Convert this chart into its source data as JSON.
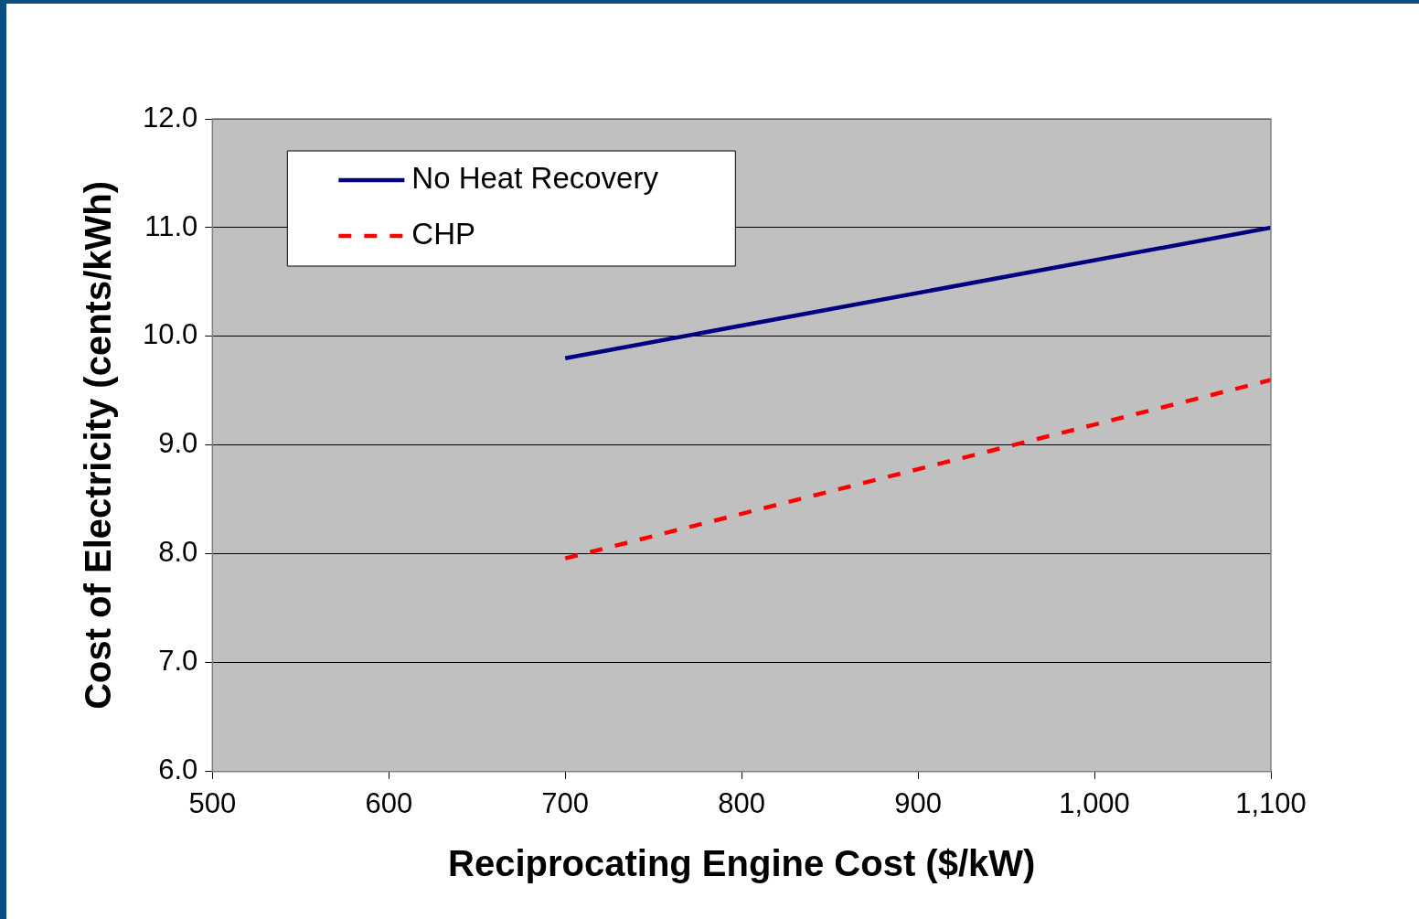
{
  "chart_data": {
    "type": "line",
    "xlabel": "Reciprocating Engine Cost ($/kW)",
    "ylabel": "Cost of Electricity (cents/kWh)",
    "x": [
      700,
      1100
    ],
    "series": [
      {
        "name": "No Heat Recovery",
        "color": "#000080",
        "values": [
          9.8,
          11.0
        ],
        "line_style": "solid"
      },
      {
        "name": "CHP",
        "color": "#ff0000",
        "values": [
          7.96,
          9.6
        ],
        "line_style": "dashed"
      }
    ],
    "xlim": [
      500,
      1100
    ],
    "ylim": [
      6,
      12
    ],
    "xticks": [
      500,
      600,
      700,
      800,
      900,
      {
        "value": 1000,
        "label": "1,000"
      },
      {
        "value": 1100,
        "label": "1,100"
      }
    ],
    "yticks": [
      {
        "value": 6,
        "label": "6.0"
      },
      {
        "value": 7,
        "label": "7.0"
      },
      {
        "value": 8,
        "label": "8.0"
      },
      {
        "value": 9,
        "label": "9.0"
      },
      {
        "value": 10,
        "label": "10.0"
      },
      {
        "value": 11,
        "label": "11.0"
      },
      {
        "value": 12,
        "label": "12.0"
      }
    ],
    "grid": "y",
    "legend": "top left",
    "marker": "none"
  }
}
